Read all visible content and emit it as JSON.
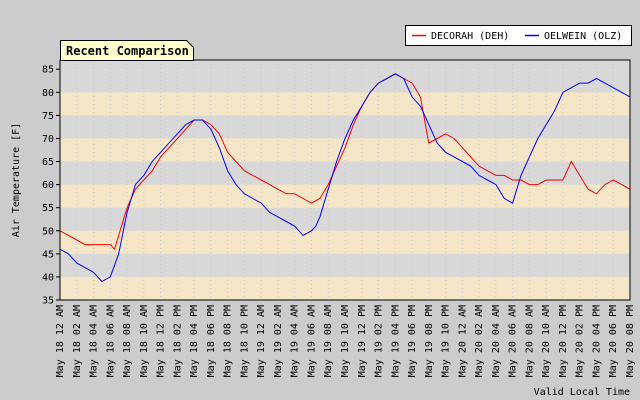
{
  "chart_data": {
    "type": "line",
    "title": "Recent Comparison",
    "ylabel": "Air Temperature [F]",
    "xlabel": "Valid Local Time",
    "ylim": [
      35,
      87
    ],
    "yticks": [
      35,
      40,
      45,
      50,
      55,
      60,
      65,
      70,
      75,
      80,
      85
    ],
    "xlim": [
      "2008-05-18 00:00",
      "2008-05-20 20:00"
    ],
    "xticks": [
      "May 18 12 AM",
      "May 18 02 AM",
      "May 18 04 AM",
      "May 18 06 AM",
      "May 18 08 AM",
      "May 18 10 AM",
      "May 18 12 PM",
      "May 18 02 PM",
      "May 18 04 PM",
      "May 18 06 PM",
      "May 18 08 PM",
      "May 18 10 PM",
      "May 19 12 AM",
      "May 19 02 AM",
      "May 19 04 AM",
      "May 19 06 AM",
      "May 19 08 AM",
      "May 19 10 AM",
      "May 19 12 PM",
      "May 19 02 PM",
      "May 19 04 PM",
      "May 19 06 PM",
      "May 19 08 PM",
      "May 19 10 PM",
      "May 20 12 AM",
      "May 20 02 AM",
      "May 20 04 AM",
      "May 20 06 AM",
      "May 20 08 AM",
      "May 20 10 AM",
      "May 20 12 PM",
      "May 20 02 PM",
      "May 20 04 PM",
      "May 20 06 PM",
      "May 20 08 PM"
    ],
    "grid": true,
    "legend_position": "top-right",
    "series": [
      {
        "name": "DECORAH (DEH)",
        "color": "#ff0000",
        "x": [
          "2008-05-18 00:00",
          "2008-05-18 01:00",
          "2008-05-18 02:00",
          "2008-05-18 03:00",
          "2008-05-18 04:00",
          "2008-05-18 05:00",
          "2008-05-18 06:00",
          "2008-05-18 06:30",
          "2008-05-18 07:00",
          "2008-05-18 08:00",
          "2008-05-18 09:00",
          "2008-05-18 10:00",
          "2008-05-18 11:00",
          "2008-05-18 12:00",
          "2008-05-18 13:00",
          "2008-05-18 14:00",
          "2008-05-18 15:00",
          "2008-05-18 16:00",
          "2008-05-18 17:00",
          "2008-05-18 18:00",
          "2008-05-18 19:00",
          "2008-05-18 20:00",
          "2008-05-18 21:00",
          "2008-05-18 22:00",
          "2008-05-18 23:00",
          "2008-05-19 00:00",
          "2008-05-19 01:00",
          "2008-05-19 02:00",
          "2008-05-19 03:00",
          "2008-05-19 04:00",
          "2008-05-19 05:00",
          "2008-05-19 06:00",
          "2008-05-19 07:00",
          "2008-05-19 08:00",
          "2008-05-19 09:00",
          "2008-05-19 10:00",
          "2008-05-19 11:00",
          "2008-05-19 12:00",
          "2008-05-19 13:00",
          "2008-05-19 14:00",
          "2008-05-19 15:00",
          "2008-05-19 16:00",
          "2008-05-19 17:00",
          "2008-05-19 18:00",
          "2008-05-19 19:00",
          "2008-05-19 20:00",
          "2008-05-19 21:00",
          "2008-05-19 22:00",
          "2008-05-19 23:00",
          "2008-05-20 00:00",
          "2008-05-20 01:00",
          "2008-05-20 02:00",
          "2008-05-20 03:00",
          "2008-05-20 04:00",
          "2008-05-20 05:00",
          "2008-05-20 06:00",
          "2008-05-20 07:00",
          "2008-05-20 08:00",
          "2008-05-20 09:00",
          "2008-05-20 10:00",
          "2008-05-20 11:00",
          "2008-05-20 12:00",
          "2008-05-20 13:00",
          "2008-05-20 14:00",
          "2008-05-20 15:00",
          "2008-05-20 16:00",
          "2008-05-20 17:00",
          "2008-05-20 18:00",
          "2008-05-20 19:00",
          "2008-05-20 20:00"
        ],
        "y": [
          50,
          49,
          48,
          47,
          47,
          47,
          47,
          46,
          49,
          55,
          59,
          61,
          63,
          66,
          68,
          70,
          72,
          74,
          74,
          73,
          71,
          67,
          65,
          63,
          62,
          61,
          60,
          59,
          58,
          58,
          57,
          56,
          57,
          60,
          64,
          68,
          73,
          77,
          80,
          82,
          83,
          84,
          83,
          82,
          79,
          69,
          70,
          71,
          70,
          68,
          66,
          64,
          63,
          62,
          62,
          61,
          61,
          60,
          60,
          61,
          61,
          61,
          65,
          62,
          59,
          58,
          60,
          61,
          60,
          59
        ]
      },
      {
        "name": "OELWEIN (OLZ)",
        "color": "#0000ff",
        "x": [
          "2008-05-18 00:00",
          "2008-05-18 01:00",
          "2008-05-18 02:00",
          "2008-05-18 03:00",
          "2008-05-18 04:00",
          "2008-05-18 05:00",
          "2008-05-18 06:00",
          "2008-05-18 07:00",
          "2008-05-18 08:00",
          "2008-05-18 09:00",
          "2008-05-18 10:00",
          "2008-05-18 11:00",
          "2008-05-18 12:00",
          "2008-05-18 13:00",
          "2008-05-18 14:00",
          "2008-05-18 15:00",
          "2008-05-18 16:00",
          "2008-05-18 17:00",
          "2008-05-18 18:00",
          "2008-05-18 19:00",
          "2008-05-18 20:00",
          "2008-05-18 21:00",
          "2008-05-18 22:00",
          "2008-05-18 23:00",
          "2008-05-19 00:00",
          "2008-05-19 01:00",
          "2008-05-19 02:00",
          "2008-05-19 03:00",
          "2008-05-19 04:00",
          "2008-05-19 05:00",
          "2008-05-19 06:00",
          "2008-05-19 06:30",
          "2008-05-19 07:00",
          "2008-05-19 08:00",
          "2008-05-19 09:00",
          "2008-05-19 10:00",
          "2008-05-19 11:00",
          "2008-05-19 12:00",
          "2008-05-19 13:00",
          "2008-05-19 14:00",
          "2008-05-19 15:00",
          "2008-05-19 16:00",
          "2008-05-19 17:00",
          "2008-05-19 18:00",
          "2008-05-19 19:00",
          "2008-05-19 20:00",
          "2008-05-19 21:00",
          "2008-05-19 22:00",
          "2008-05-19 23:00",
          "2008-05-20 00:00",
          "2008-05-20 01:00",
          "2008-05-20 02:00",
          "2008-05-20 03:00",
          "2008-05-20 04:00",
          "2008-05-20 05:00",
          "2008-05-20 06:00",
          "2008-05-20 07:00",
          "2008-05-20 08:00",
          "2008-05-20 09:00",
          "2008-05-20 10:00",
          "2008-05-20 11:00",
          "2008-05-20 12:00",
          "2008-05-20 13:00",
          "2008-05-20 14:00",
          "2008-05-20 15:00",
          "2008-05-20 16:00",
          "2008-05-20 17:00",
          "2008-05-20 18:00",
          "2008-05-20 19:00",
          "2008-05-20 20:00"
        ],
        "y": [
          46,
          45,
          43,
          42,
          41,
          39,
          40,
          45,
          54,
          60,
          62,
          65,
          67,
          69,
          71,
          73,
          74,
          74,
          72,
          68,
          63,
          60,
          58,
          57,
          56,
          54,
          53,
          52,
          51,
          49,
          50,
          51,
          53,
          59,
          65,
          70,
          74,
          77,
          80,
          82,
          83,
          84,
          83,
          79,
          77,
          73,
          69,
          67,
          66,
          65,
          64,
          62,
          61,
          60,
          57,
          56,
          62,
          66,
          70,
          73,
          76,
          80,
          81,
          82,
          82,
          83,
          82,
          81,
          80,
          79
        ]
      }
    ]
  }
}
